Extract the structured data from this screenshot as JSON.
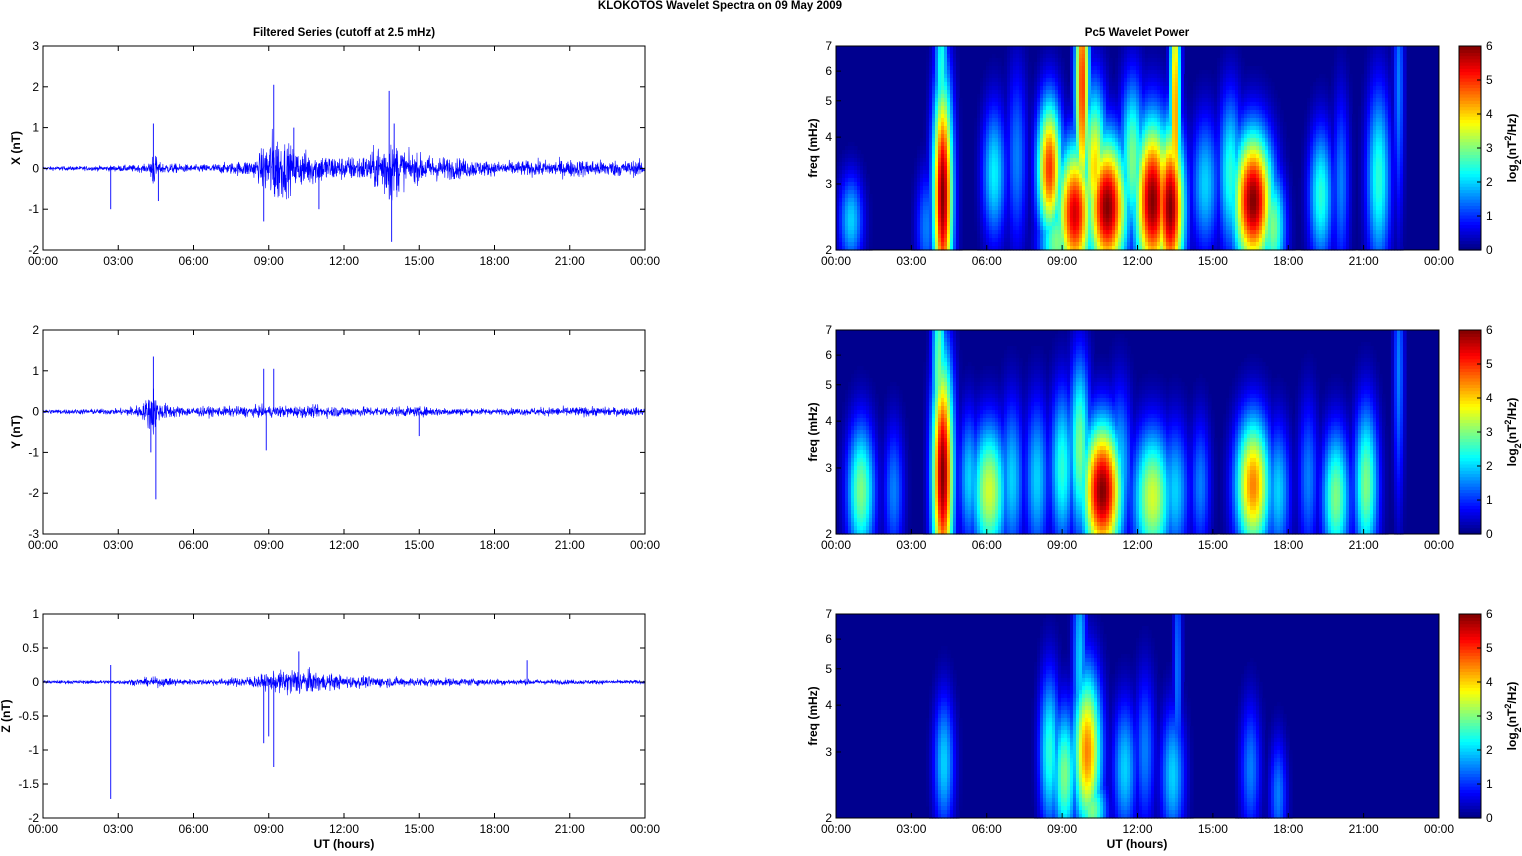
{
  "suptitle": "KLOKOTOS Wavelet Spectra on 09 May       2009",
  "left_title": "Filtered Series (cutoff at 2.5 mHz)",
  "right_title": "Pc5 Wavelet Power",
  "xlabel": "UT (hours)",
  "colorbar_label": "log2(nT2/Hz)",
  "colors": {
    "trace": "#0000ff",
    "background": "#00008f"
  },
  "chart_data": [
    {
      "type": "line",
      "component": "X",
      "ylabel": "X (nT)",
      "xlim": [
        0,
        24
      ],
      "ylim": [
        -2,
        3
      ],
      "x_ticks": [
        "00:00",
        "03:00",
        "06:00",
        "09:00",
        "12:00",
        "15:00",
        "18:00",
        "21:00",
        "00:00"
      ],
      "y_ticks": [
        "3",
        "2",
        "1",
        "0",
        "-1",
        "-2"
      ],
      "series": [
        {
          "values_description_free": true,
          "envelope": [
            [
              0,
              0.1
            ],
            [
              2,
              0.12
            ],
            [
              4.2,
              0.2
            ],
            [
              4.4,
              1.1
            ],
            [
              4.6,
              0.3
            ],
            [
              6,
              0.18
            ],
            [
              7.5,
              0.3
            ],
            [
              8.5,
              0.5
            ],
            [
              9.2,
              2.05
            ],
            [
              10,
              1.0
            ],
            [
              11,
              0.8
            ],
            [
              12,
              0.6
            ],
            [
              13,
              0.7
            ],
            [
              13.8,
              1.9
            ],
            [
              14.5,
              0.8
            ],
            [
              16,
              0.6
            ],
            [
              18,
              0.35
            ],
            [
              21,
              0.45
            ],
            [
              24,
              0.4
            ]
          ],
          "spikes": [
            [
              2.7,
              -1.0
            ],
            [
              4.4,
              1.1
            ],
            [
              4.6,
              -0.8
            ],
            [
              8.8,
              -1.3
            ],
            [
              9.2,
              2.05
            ],
            [
              10,
              1.0
            ],
            [
              13.8,
              1.9
            ],
            [
              13.9,
              -1.8
            ],
            [
              14,
              1.1
            ],
            [
              11,
              -1.0
            ]
          ]
        }
      ]
    },
    {
      "type": "line",
      "component": "Y",
      "ylabel": "Y (nT)",
      "xlim": [
        0,
        24
      ],
      "ylim": [
        -3,
        2
      ],
      "x_ticks": [
        "00:00",
        "03:00",
        "06:00",
        "09:00",
        "12:00",
        "15:00",
        "18:00",
        "21:00",
        "00:00"
      ],
      "y_ticks": [
        "2",
        "1",
        "0",
        "-1",
        "-2",
        "-3"
      ],
      "series": [
        {
          "envelope": [
            [
              0,
              0.12
            ],
            [
              3,
              0.15
            ],
            [
              4.0,
              0.4
            ],
            [
              4.4,
              1.4
            ],
            [
              4.6,
              0.5
            ],
            [
              5.5,
              0.25
            ],
            [
              7,
              0.25
            ],
            [
              9,
              0.3
            ],
            [
              11,
              0.3
            ],
            [
              13,
              0.25
            ],
            [
              15,
              0.25
            ],
            [
              18,
              0.15
            ],
            [
              21,
              0.25
            ],
            [
              24,
              0.2
            ]
          ],
          "spikes": [
            [
              4.4,
              1.35
            ],
            [
              4.5,
              -2.15
            ],
            [
              4.3,
              -1.0
            ],
            [
              8.8,
              1.05
            ],
            [
              9.2,
              1.05
            ],
            [
              8.9,
              -0.95
            ],
            [
              15,
              -0.6
            ]
          ]
        }
      ]
    },
    {
      "type": "line",
      "component": "Z",
      "ylabel": "Z (nT)",
      "xlim": [
        0,
        24
      ],
      "ylim": [
        -2,
        1
      ],
      "x_ticks": [
        "00:00",
        "03:00",
        "06:00",
        "09:00",
        "12:00",
        "15:00",
        "18:00",
        "21:00",
        "00:00"
      ],
      "y_ticks": [
        "1",
        "0.5",
        "0",
        "-0.5",
        "-1",
        "-1.5",
        "-2"
      ],
      "series": [
        {
          "envelope": [
            [
              0,
              0.05
            ],
            [
              3,
              0.06
            ],
            [
              4.5,
              0.15
            ],
            [
              6,
              0.08
            ],
            [
              7.5,
              0.12
            ],
            [
              9,
              0.25
            ],
            [
              10,
              0.45
            ],
            [
              11,
              0.3
            ],
            [
              12,
              0.2
            ],
            [
              14,
              0.15
            ],
            [
              16,
              0.12
            ],
            [
              18,
              0.1
            ],
            [
              21,
              0.07
            ],
            [
              24,
              0.06
            ]
          ],
          "spikes": [
            [
              2.7,
              -1.72
            ],
            [
              2.7,
              0.25
            ],
            [
              8.8,
              -0.9
            ],
            [
              9.2,
              -1.25
            ],
            [
              9.0,
              -0.8
            ],
            [
              10.2,
              0.45
            ],
            [
              19.3,
              0.32
            ]
          ]
        }
      ]
    },
    {
      "type": "heatmap",
      "component": "X",
      "ylabel": "freq (mHz)",
      "xlim": [
        0,
        24
      ],
      "ylim": [
        2,
        7
      ],
      "y_scale": "log",
      "y_ticks": [
        "7",
        "6",
        "5",
        "4",
        "3",
        "2"
      ],
      "y_tick_values": [
        7,
        6,
        5,
        4,
        3,
        2
      ],
      "x_ticks": [
        "00:00",
        "03:00",
        "06:00",
        "09:00",
        "12:00",
        "15:00",
        "18:00",
        "21:00",
        "00:00"
      ],
      "colorbar_range": [
        0,
        6
      ],
      "colorbar_ticks": [
        "6",
        "5",
        "4",
        "3",
        "2",
        "1",
        "0"
      ],
      "blobs": [
        [
          0.6,
          2.4,
          2.0,
          0.35,
          0.2
        ],
        [
          3.6,
          2.3,
          1.5,
          0.3,
          0.25
        ],
        [
          4.25,
          2.8,
          6.0,
          0.28,
          0.5
        ],
        [
          4.2,
          5.5,
          2.5,
          0.2,
          0.6
        ],
        [
          6.3,
          3.2,
          2.2,
          0.35,
          0.3
        ],
        [
          7.2,
          3.5,
          1.5,
          0.3,
          0.4
        ],
        [
          8.5,
          3.3,
          5.0,
          0.35,
          0.3
        ],
        [
          8.8,
          2.1,
          3.0,
          0.5,
          0.2
        ],
        [
          9.5,
          2.5,
          5.5,
          0.5,
          0.3
        ],
        [
          9.8,
          5.5,
          5.0,
          0.2,
          0.6
        ],
        [
          10.3,
          3.3,
          4.0,
          0.35,
          0.35
        ],
        [
          10.8,
          2.6,
          6.0,
          0.55,
          0.3
        ],
        [
          11.8,
          3.5,
          3.0,
          0.35,
          0.35
        ],
        [
          12.6,
          2.7,
          6.0,
          0.5,
          0.35
        ],
        [
          13.3,
          2.6,
          6.0,
          0.4,
          0.35
        ],
        [
          13.5,
          4.6,
          4.5,
          0.15,
          0.7
        ],
        [
          14.7,
          3.0,
          2.0,
          0.4,
          0.3
        ],
        [
          15.7,
          3.2,
          2.5,
          0.35,
          0.35
        ],
        [
          16.6,
          2.7,
          6.0,
          0.55,
          0.3
        ],
        [
          17.4,
          2.3,
          3.0,
          0.35,
          0.25
        ],
        [
          19.3,
          2.8,
          2.5,
          0.35,
          0.3
        ],
        [
          20.1,
          3.0,
          1.5,
          0.25,
          0.4
        ],
        [
          21.6,
          3.1,
          2.5,
          0.35,
          0.4
        ],
        [
          22.4,
          5.5,
          1.5,
          0.15,
          0.6
        ]
      ]
    },
    {
      "type": "heatmap",
      "component": "Y",
      "ylabel": "freq (mHz)",
      "xlim": [
        0,
        24
      ],
      "ylim": [
        2,
        7
      ],
      "y_scale": "log",
      "y_ticks": [
        "7",
        "6",
        "5",
        "4",
        "3",
        "2"
      ],
      "y_tick_values": [
        7,
        6,
        5,
        4,
        3,
        2
      ],
      "x_ticks": [
        "00:00",
        "03:00",
        "06:00",
        "09:00",
        "12:00",
        "15:00",
        "18:00",
        "21:00",
        "00:00"
      ],
      "colorbar_range": [
        0,
        6
      ],
      "colorbar_ticks": [
        "6",
        "5",
        "4",
        "3",
        "2",
        "1",
        "0"
      ],
      "blobs": [
        [
          1.0,
          2.6,
          3.0,
          0.4,
          0.3
        ],
        [
          2.3,
          2.6,
          1.5,
          0.3,
          0.3
        ],
        [
          4.25,
          2.9,
          6.0,
          0.3,
          0.5
        ],
        [
          4.1,
          5.2,
          3.0,
          0.2,
          0.6
        ],
        [
          5.3,
          2.8,
          2.0,
          0.3,
          0.3
        ],
        [
          6.1,
          2.6,
          3.5,
          0.5,
          0.3
        ],
        [
          7.0,
          2.8,
          2.0,
          0.35,
          0.35
        ],
        [
          8.0,
          2.8,
          2.0,
          0.35,
          0.35
        ],
        [
          9.0,
          3.0,
          2.5,
          0.35,
          0.35
        ],
        [
          9.7,
          3.4,
          3.0,
          0.3,
          0.4
        ],
        [
          10.6,
          2.6,
          6.0,
          0.55,
          0.3
        ],
        [
          11.3,
          3.0,
          2.0,
          0.35,
          0.35
        ],
        [
          12.6,
          2.5,
          3.5,
          0.55,
          0.3
        ],
        [
          13.5,
          2.6,
          2.0,
          0.4,
          0.3
        ],
        [
          14.5,
          2.7,
          1.5,
          0.3,
          0.3
        ],
        [
          16.6,
          2.7,
          4.5,
          0.5,
          0.3
        ],
        [
          17.6,
          2.6,
          2.0,
          0.35,
          0.3
        ],
        [
          18.8,
          2.8,
          1.5,
          0.3,
          0.35
        ],
        [
          19.9,
          2.5,
          3.0,
          0.4,
          0.3
        ],
        [
          21.1,
          2.7,
          3.0,
          0.35,
          0.35
        ],
        [
          22.4,
          5.5,
          1.5,
          0.15,
          0.6
        ]
      ]
    },
    {
      "type": "heatmap",
      "component": "Z",
      "ylabel": "freq (mHz)",
      "xlim": [
        0,
        24
      ],
      "ylim": [
        2,
        7
      ],
      "y_scale": "log",
      "y_ticks": [
        "7",
        "6",
        "5",
        "4",
        "3",
        "2"
      ],
      "y_tick_values": [
        7,
        6,
        5,
        4,
        3,
        2
      ],
      "x_ticks": [
        "00:00",
        "03:00",
        "06:00",
        "09:00",
        "12:00",
        "15:00",
        "18:00",
        "21:00",
        "00:00"
      ],
      "colorbar_range": [
        0,
        6
      ],
      "colorbar_ticks": [
        "6",
        "5",
        "4",
        "3",
        "2",
        "1",
        "0"
      ],
      "blobs": [
        [
          4.3,
          2.8,
          2.0,
          0.3,
          0.3
        ],
        [
          8.5,
          3.0,
          2.5,
          0.3,
          0.35
        ],
        [
          9.1,
          2.6,
          3.0,
          0.35,
          0.3
        ],
        [
          10.0,
          3.0,
          4.5,
          0.4,
          0.35
        ],
        [
          10.2,
          2.1,
          3.0,
          0.4,
          0.15
        ],
        [
          9.7,
          5.0,
          2.0,
          0.2,
          0.6
        ],
        [
          11.5,
          2.7,
          2.0,
          0.35,
          0.3
        ],
        [
          12.3,
          3.0,
          1.5,
          0.3,
          0.35
        ],
        [
          13.4,
          2.6,
          2.0,
          0.35,
          0.3
        ],
        [
          13.6,
          4.8,
          1.5,
          0.12,
          0.6
        ],
        [
          16.5,
          2.7,
          1.5,
          0.3,
          0.3
        ],
        [
          17.6,
          2.3,
          1.5,
          0.25,
          0.25
        ]
      ]
    }
  ]
}
